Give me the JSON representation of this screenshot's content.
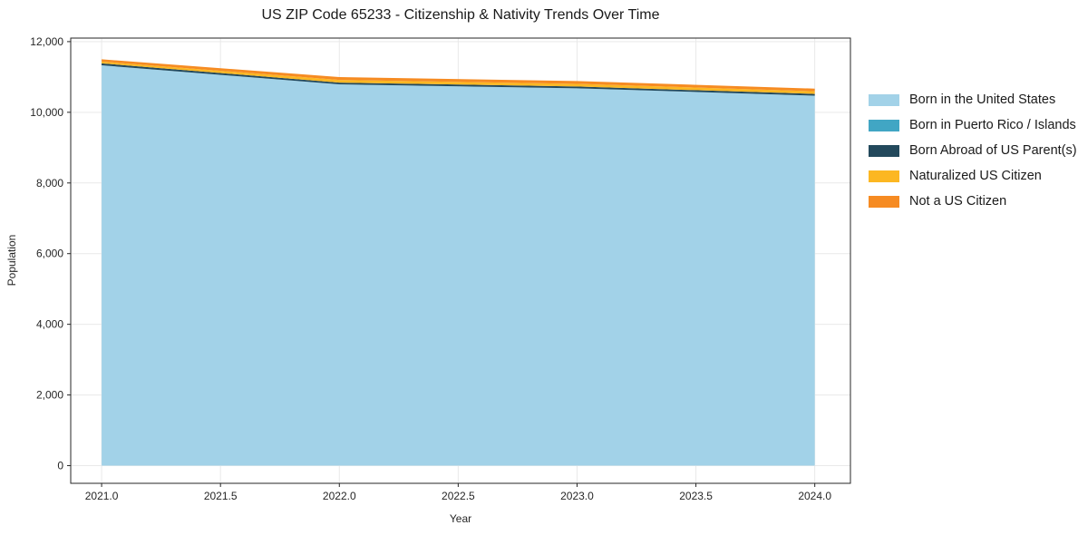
{
  "chart_data": {
    "type": "area",
    "stacked": true,
    "title": "US ZIP Code 65233 - Citizenship & Nativity Trends Over Time",
    "xlabel": "Year",
    "ylabel": "Population",
    "x": [
      2021,
      2022,
      2023,
      2024
    ],
    "series": [
      {
        "name": "Born in the United States",
        "color": "#a2d2e8",
        "values": [
          11330,
          10790,
          10680,
          10470
        ]
      },
      {
        "name": "Born in Puerto Rico / Islands",
        "color": "#41a6c4",
        "values": [
          0,
          0,
          0,
          0
        ]
      },
      {
        "name": "Born Abroad of US Parent(s)",
        "color": "#23495c",
        "values": [
          55,
          50,
          50,
          50
        ]
      },
      {
        "name": "Naturalized US Citizen",
        "color": "#fcb722",
        "values": [
          50,
          75,
          75,
          75
        ]
      },
      {
        "name": "Not a US Citizen",
        "color": "#f68b22",
        "values": [
          65,
          80,
          80,
          75
        ]
      }
    ],
    "xlim": [
      2020.87,
      2024.15
    ],
    "ylim": [
      -500,
      12100
    ],
    "x_ticks": [
      2021.0,
      2021.5,
      2022.0,
      2022.5,
      2023.0,
      2023.5,
      2024.0
    ],
    "x_tick_labels": [
      "2021.0",
      "2021.5",
      "2022.0",
      "2022.5",
      "2023.0",
      "2023.5",
      "2024.0"
    ],
    "y_ticks": [
      0,
      2000,
      4000,
      6000,
      8000,
      10000,
      12000
    ],
    "y_tick_labels": [
      "0",
      "2,000",
      "4,000",
      "6,000",
      "8,000",
      "10,000",
      "12,000"
    ],
    "grid": true,
    "grid_color": "#e9e9e9",
    "spine_color": "#262626",
    "legend_position": "outside-right"
  }
}
